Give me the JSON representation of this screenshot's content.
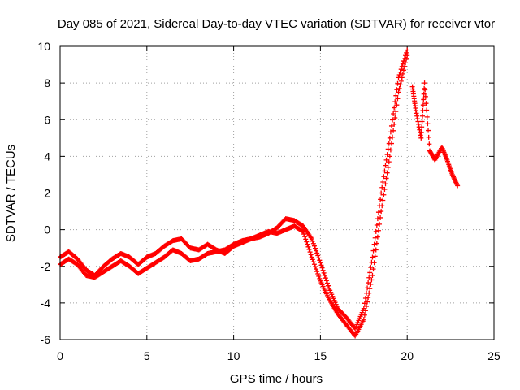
{
  "chart_data": {
    "type": "scatter",
    "title": "Day 085 of 2021, Sidereal Day-to-day VTEC variation (SDTVAR) for receiver vtor",
    "xlabel": "GPS time / hours",
    "ylabel": "SDTVAR / TECUs",
    "xlim": [
      0,
      25
    ],
    "ylim": [
      -6,
      10
    ],
    "grid": true,
    "x_ticks": [
      0,
      5,
      10,
      15,
      20,
      25
    ],
    "y_ticks": [
      -6,
      -4,
      -2,
      0,
      2,
      4,
      6,
      8,
      10
    ],
    "x_tick_labels": [
      "0",
      "5",
      "10",
      "15",
      "20",
      "25"
    ],
    "y_tick_labels": [
      "-6",
      "-4",
      "-2",
      "0",
      "2",
      "4",
      "6",
      "8",
      "10"
    ],
    "marker": "+",
    "series": [
      {
        "name": "track-a",
        "color": "#ff0000",
        "x": [
          0.0,
          0.5,
          1.0,
          1.5,
          2.0,
          2.5,
          3.0,
          3.5,
          4.0,
          4.5,
          5.0,
          5.5,
          6.0,
          6.5,
          7.0,
          7.5,
          8.0,
          8.5,
          9.0,
          9.5,
          10.0,
          10.5,
          11.0,
          11.5,
          12.0,
          12.5,
          13.0,
          13.5,
          14.0,
          14.5,
          15.0,
          15.5,
          16.0,
          16.5,
          17.0,
          17.5,
          18.0,
          18.5,
          19.0,
          19.5,
          20.0
        ],
        "y": [
          -1.5,
          -1.2,
          -1.6,
          -2.2,
          -2.5,
          -2.0,
          -1.6,
          -1.3,
          -1.5,
          -1.9,
          -1.5,
          -1.3,
          -0.9,
          -0.6,
          -0.5,
          -1.0,
          -1.1,
          -0.8,
          -1.1,
          -1.3,
          -0.9,
          -0.7,
          -0.5,
          -0.4,
          -0.2,
          0.1,
          0.6,
          0.5,
          0.2,
          -0.5,
          -1.8,
          -3.2,
          -4.3,
          -4.8,
          -5.4,
          -4.3,
          -1.5,
          2.0,
          5.0,
          8.3,
          9.8
        ]
      },
      {
        "name": "track-b",
        "color": "#ff0000",
        "x": [
          0.0,
          0.5,
          1.0,
          1.5,
          2.0,
          2.5,
          3.0,
          3.5,
          4.0,
          4.5,
          5.0,
          5.5,
          6.0,
          6.5,
          7.0,
          7.5,
          8.0,
          8.5,
          9.0,
          9.5,
          10.0,
          10.5,
          11.0,
          11.5,
          12.0,
          12.5,
          13.0,
          13.5,
          14.0,
          14.5,
          15.0,
          15.5,
          16.0,
          16.5,
          17.0,
          17.5,
          18.0,
          18.5,
          19.0,
          19.5,
          20.0
        ],
        "y": [
          -1.9,
          -1.6,
          -1.9,
          -2.5,
          -2.6,
          -2.3,
          -2.0,
          -1.7,
          -2.0,
          -2.4,
          -2.1,
          -1.8,
          -1.5,
          -1.1,
          -1.3,
          -1.7,
          -1.6,
          -1.3,
          -1.2,
          -1.1,
          -0.8,
          -0.6,
          -0.5,
          -0.3,
          -0.1,
          -0.2,
          0.0,
          0.2,
          -0.1,
          -1.5,
          -2.8,
          -3.8,
          -4.6,
          -5.2,
          -5.8,
          -4.9,
          -2.5,
          1.0,
          4.0,
          7.5,
          9.5
        ]
      },
      {
        "name": "track-c",
        "color": "#ff0000",
        "x": [
          20.3,
          20.5,
          20.8,
          21.0,
          21.3,
          21.6,
          22.0,
          22.3,
          22.6,
          22.9
        ],
        "y": [
          7.8,
          6.5,
          5.0,
          8.0,
          4.3,
          3.8,
          4.5,
          3.8,
          3.0,
          2.4
        ]
      }
    ]
  }
}
